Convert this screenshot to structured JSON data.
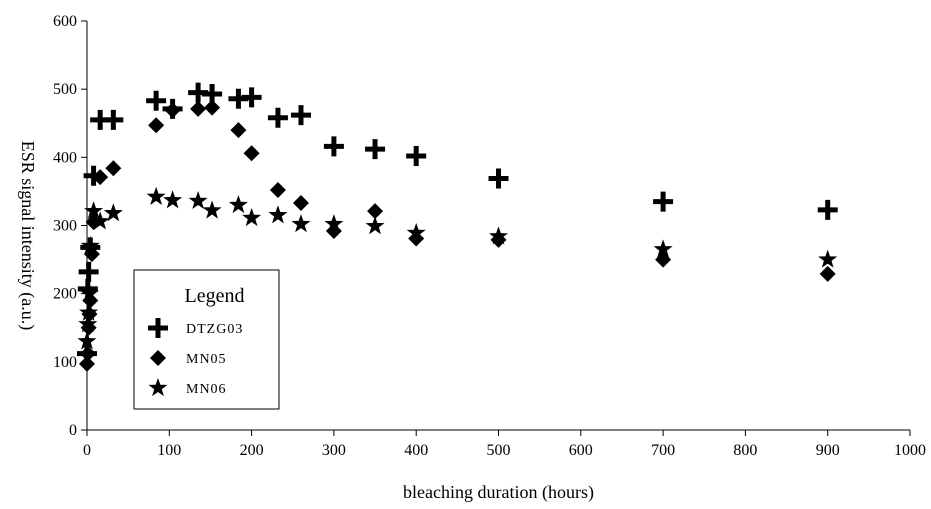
{
  "chart_data": {
    "type": "scatter",
    "title": "",
    "xlabel": "bleaching duration (hours)",
    "ylabel": "ESR signal intensity (a.u.)",
    "xlim": [
      0,
      1000
    ],
    "ylim": [
      0,
      600
    ],
    "xticks": [
      0,
      100,
      200,
      300,
      400,
      500,
      600,
      700,
      800,
      900,
      1000
    ],
    "yticks": [
      0,
      100,
      200,
      300,
      400,
      500,
      600
    ],
    "grid": false,
    "legend": {
      "title": "Legend",
      "position": "lower-left"
    },
    "series": [
      {
        "name": "DTZG03",
        "marker": "plus",
        "color": "#000000",
        "x": [
          0,
          1,
          2,
          4,
          8,
          16,
          32,
          84,
          104,
          135,
          152,
          184,
          200,
          232,
          260,
          300,
          350,
          400,
          500,
          700,
          900
        ],
        "y": [
          112,
          207,
          232,
          268,
          373,
          455,
          455,
          483,
          471,
          495,
          493,
          486,
          488,
          458,
          462,
          416,
          412,
          402,
          369,
          335,
          323
        ]
      },
      {
        "name": "MN05",
        "marker": "diamond",
        "color": "#000000",
        "x": [
          0,
          1,
          2,
          3,
          4,
          6,
          8,
          16,
          32,
          84,
          104,
          135,
          152,
          184,
          200,
          232,
          260,
          300,
          350,
          400,
          500,
          700,
          900
        ],
        "y": [
          97,
          112,
          150,
          170,
          190,
          258,
          305,
          371,
          384,
          447,
          469,
          471,
          473,
          440,
          406,
          352,
          333,
          292,
          321,
          281,
          279,
          250,
          229
        ]
      },
      {
        "name": "MN06",
        "marker": "star",
        "color": "#000000",
        "x": [
          0,
          1,
          2,
          3,
          4,
          8,
          16,
          32,
          84,
          104,
          135,
          152,
          184,
          200,
          232,
          260,
          300,
          350,
          400,
          500,
          700,
          900
        ],
        "y": [
          130,
          155,
          172,
          200,
          270,
          321,
          306,
          318,
          342,
          337,
          336,
          322,
          330,
          311,
          315,
          302,
          302,
          299,
          289,
          284,
          265,
          250
        ]
      }
    ]
  }
}
